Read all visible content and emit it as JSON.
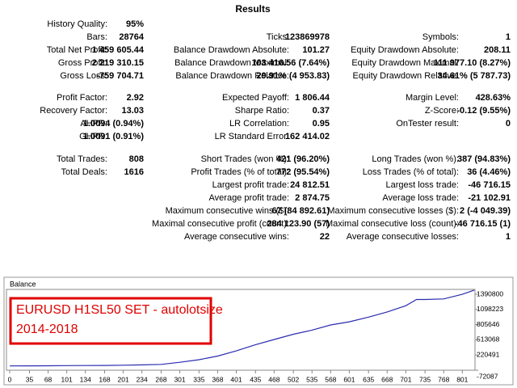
{
  "results": {
    "title": "Results",
    "rows": [
      [
        {
          "label": "History Quality:",
          "value": "95%"
        },
        null,
        null
      ],
      [
        {
          "label": "Bars:",
          "value": "28764"
        },
        {
          "label": "Ticks:",
          "value": "123869978"
        },
        {
          "label": "Symbols:",
          "value": "1"
        }
      ],
      [
        {
          "label": "Total Net Profit:",
          "value": "1 459 605.44"
        },
        {
          "label": "Balance Drawdown Absolute:",
          "value": "101.27"
        },
        {
          "label": "Equity Drawdown Absolute:",
          "value": "208.11"
        }
      ],
      [
        {
          "label": "Gross Profit:",
          "value": "2 219 310.15"
        },
        {
          "label": "Balance Drawdown Maximal:",
          "value": "103 416.56 (7.64%)"
        },
        {
          "label": "Equity Drawdown Maximal:",
          "value": "111 977.10 (8.27%)"
        }
      ],
      [
        {
          "label": "Gross Loss:",
          "value": "-759 704.71"
        },
        {
          "label": "Balance Drawdown Relative:",
          "value": "29.91% (4 953.83)"
        },
        {
          "label": "Equity Drawdown Relative:",
          "value": "34.61% (5 787.73)"
        }
      ],
      [
        {
          "label": "Profit Factor:",
          "value": "2.92"
        },
        {
          "label": "Expected Payoff:",
          "value": "1 806.44"
        },
        {
          "label": "Margin Level:",
          "value": "428.63%"
        }
      ],
      [
        {
          "label": "Recovery Factor:",
          "value": "13.03"
        },
        {
          "label": "Sharpe Ratio:",
          "value": "0.37"
        },
        {
          "label": "Z-Score:",
          "value": "-0.12 (9.55%)"
        }
      ],
      [
        {
          "label": "AHPR:",
          "value": "1.0094 (0.94%)"
        },
        {
          "label": "LR Correlation:",
          "value": "0.95"
        },
        {
          "label": "OnTester result:",
          "value": "0"
        }
      ],
      [
        {
          "label": "GHPR:",
          "value": "1.0091 (0.91%)"
        },
        {
          "label": "LR Standard Error:",
          "value": "162 414.02"
        },
        null
      ],
      [
        {
          "label": "Total Trades:",
          "value": "808"
        },
        {
          "label": "Short Trades (won %):",
          "value": "421 (96.20%)"
        },
        {
          "label": "Long Trades (won %):",
          "value": "387 (94.83%)"
        }
      ],
      [
        {
          "label": "Total Deals:",
          "value": "1616"
        },
        {
          "label": "Profit Trades (% of total):",
          "value": "772 (95.54%)"
        },
        {
          "label": "Loss Trades (% of total):",
          "value": "36 (4.46%)"
        }
      ],
      [
        null,
        {
          "label": "Largest profit trade:",
          "value": "24 812.51"
        },
        {
          "label": "Largest loss trade:",
          "value": "-46 716.15"
        }
      ],
      [
        null,
        {
          "label": "Average profit trade:",
          "value": "2 874.75"
        },
        {
          "label": "Average loss trade:",
          "value": "-21 102.91"
        }
      ],
      [
        null,
        {
          "label": "Maximum consecutive wins ($):",
          "value": "67 (84 892.61)"
        },
        {
          "label": "Maximum consecutive losses ($):",
          "value": "2 (-4 049.39)"
        }
      ],
      [
        null,
        {
          "label": "Maximal consecutive profit (count):",
          "value": "284 123.90 (57)"
        },
        {
          "label": "Maximal consecutive loss (count):",
          "value": "-46 716.15 (1)"
        }
      ],
      [
        null,
        {
          "label": "Average consecutive wins:",
          "value": "22"
        },
        {
          "label": "Average consecutive losses:",
          "value": "1"
        }
      ]
    ]
  },
  "chart_data": {
    "type": "line",
    "title": "Balance",
    "annotations": [
      "EURUSD H1SL50 SET - autolotsize",
      "2014-2018"
    ],
    "x": [
      0,
      35,
      68,
      101,
      134,
      168,
      201,
      234,
      268,
      301,
      335,
      368,
      401,
      435,
      468,
      502,
      535,
      568,
      601,
      635,
      668,
      701,
      720,
      735,
      768,
      801,
      822
    ],
    "series": [
      {
        "name": "Balance",
        "color": "#2b2bb0",
        "values": [
          10000,
          12000,
          14000,
          16000,
          18000,
          20000,
          24000,
          30000,
          40000,
          80000,
          130000,
          200000,
          300000,
          420000,
          520000,
          620000,
          700000,
          800000,
          860000,
          950000,
          1050000,
          1170000,
          1290000,
          1290000,
          1300000,
          1390000,
          1469605
        ]
      }
    ],
    "xlim": [
      0,
      822
    ],
    "xticks": [
      0,
      35,
      68,
      101,
      134,
      168,
      201,
      234,
      268,
      301,
      335,
      368,
      401,
      435,
      468,
      502,
      535,
      568,
      601,
      635,
      668,
      701,
      735,
      768,
      801
    ],
    "ylim": [
      -72087,
      1390800
    ],
    "yticks": [
      -72087,
      220491,
      513068,
      805646,
      1098223,
      1390800
    ]
  }
}
